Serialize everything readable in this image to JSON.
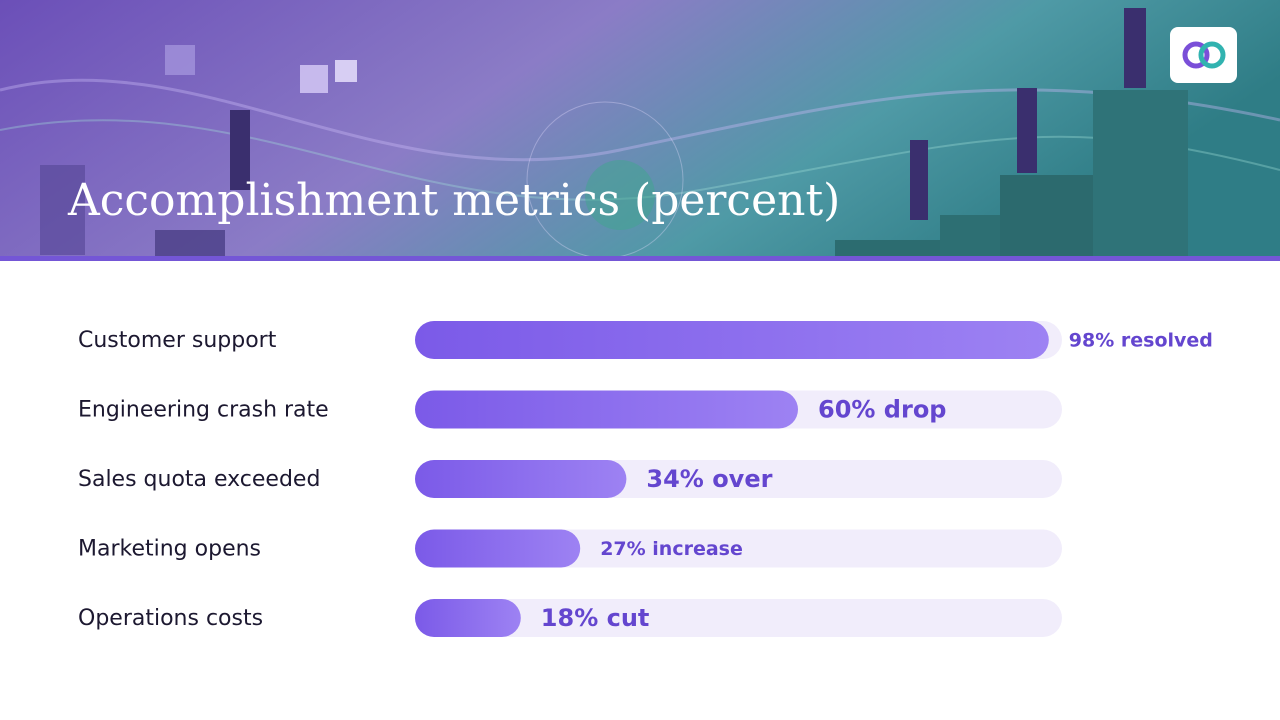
{
  "chart_data": {
    "type": "bar",
    "orientation": "horizontal",
    "title": "Accomplishment metrics (percent)",
    "categories": [
      "Customer support",
      "Engineering crash rate",
      "Sales quota exceeded",
      "Marketing opens",
      "Operations costs"
    ],
    "values": [
      98,
      60,
      34,
      27,
      18
    ],
    "value_labels": [
      "98% resolved",
      "60% drop",
      "34% over",
      "27% increase",
      "18% cut"
    ],
    "color": "#7b5ae8",
    "xlim": [
      0,
      100
    ]
  }
}
